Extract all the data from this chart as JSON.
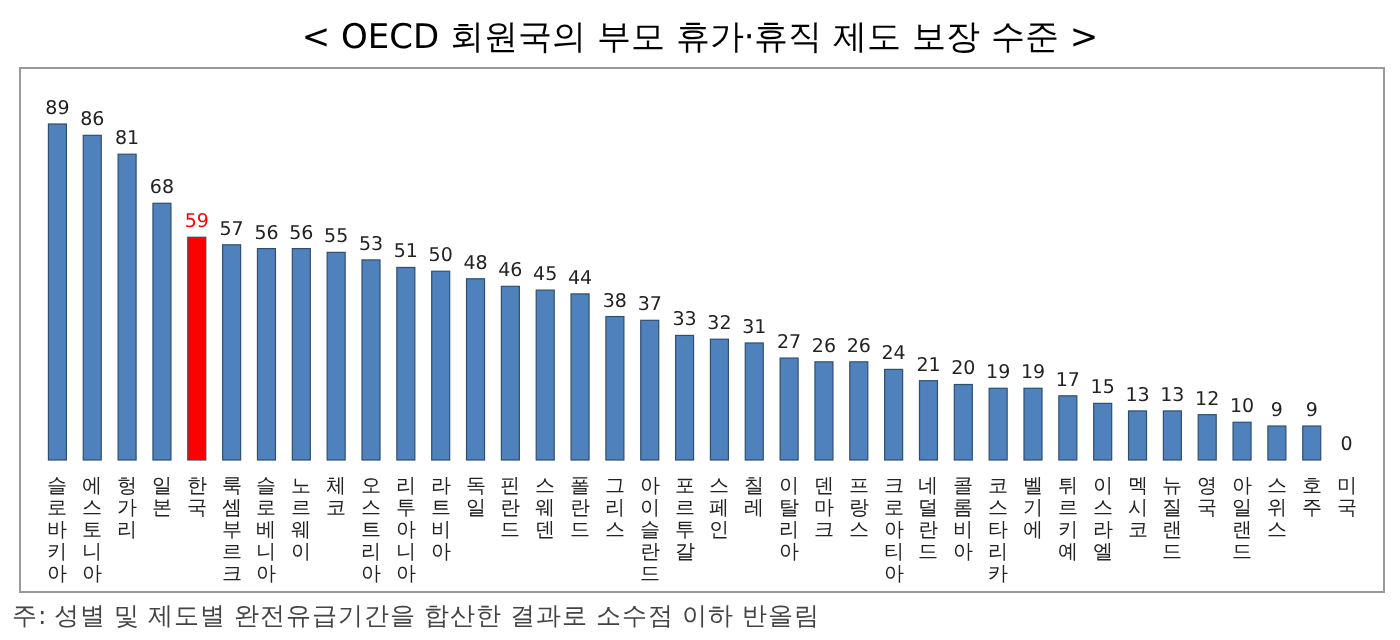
{
  "chart_data": {
    "type": "bar",
    "title": "< OECD 회원국의 부모 휴가·휴직 제도 보장 수준 >",
    "categories": [
      "슬로바키아",
      "에스토니아",
      "헝가리",
      "일본",
      "한국",
      "룩셈부르크",
      "슬로베니아",
      "노르웨이",
      "체코",
      "오스트리아",
      "리투아니아",
      "라트비아",
      "독일",
      "핀란드",
      "스웨덴",
      "폴란드",
      "그리스",
      "아이슬란드",
      "포르투갈",
      "스페인",
      "칠레",
      "이탈리아",
      "덴마크",
      "프랑스",
      "크로아티아",
      "네덜란드",
      "콜롬비아",
      "코스타리카",
      "벨기에",
      "튀르키예",
      "이스라엘",
      "멕시코",
      "뉴질랜드",
      "영국",
      "아일랜드",
      "스위스",
      "호주",
      "미국"
    ],
    "values": [
      89,
      86,
      81,
      68,
      59,
      57,
      56,
      56,
      55,
      53,
      51,
      50,
      48,
      46,
      45,
      44,
      38,
      37,
      33,
      32,
      31,
      27,
      26,
      26,
      24,
      21,
      20,
      19,
      19,
      17,
      15,
      13,
      13,
      12,
      10,
      9,
      9,
      0
    ],
    "colors": [
      "#4f81bd",
      "#4f81bd",
      "#4f81bd",
      "#4f81bd",
      "#ff0000",
      "#4f81bd",
      "#4f81bd",
      "#4f81bd",
      "#4f81bd",
      "#4f81bd",
      "#4f81bd",
      "#4f81bd",
      "#4f81bd",
      "#4f81bd",
      "#4f81bd",
      "#4f81bd",
      "#4f81bd",
      "#4f81bd",
      "#4f81bd",
      "#4f81bd",
      "#4f81bd",
      "#4f81bd",
      "#4f81bd",
      "#4f81bd",
      "#4f81bd",
      "#4f81bd",
      "#4f81bd",
      "#4f81bd",
      "#4f81bd",
      "#4f81bd",
      "#4f81bd",
      "#4f81bd",
      "#4f81bd",
      "#4f81bd",
      "#4f81bd",
      "#4f81bd",
      "#4f81bd",
      "#4f81bd"
    ],
    "data_labels": true,
    "annotations": [
      "주: 성별 및 제도별 완전유급기간을 합산한 결과로 소수점 이하 반올림"
    ]
  }
}
